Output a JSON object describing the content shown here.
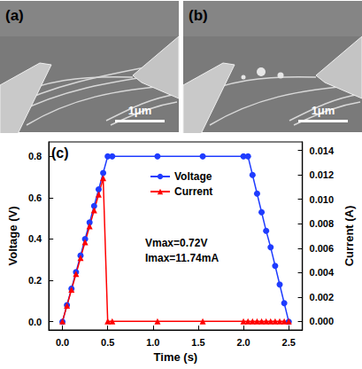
{
  "panels": [
    {
      "label": "(a)",
      "scale_bar": "1μm"
    },
    {
      "label": "(b)",
      "scale_bar": "1μm"
    }
  ],
  "chart_data": {
    "type": "line",
    "panel_label": "(c)",
    "x_label": "Time (s)",
    "y_label": "Voltage (V)",
    "y2_label": "Current (A)",
    "annotations": [
      "Vmax=0.72V",
      "Imax=11.74mA"
    ],
    "x": [
      0,
      0.05,
      0.1,
      0.15,
      0.2,
      0.25,
      0.3,
      0.35,
      0.4,
      0.45,
      0.5,
      0.55,
      1.05,
      1.55,
      2.0,
      2.05,
      2.1,
      2.15,
      2.2,
      2.25,
      2.3,
      2.35,
      2.4,
      2.45,
      2.5
    ],
    "series": [
      {
        "name": "Voltage",
        "color": "#1f3cff",
        "marker": "circle",
        "line_style": "solid",
        "axis": "y",
        "values": [
          0,
          0.08,
          0.16,
          0.24,
          0.32,
          0.4,
          0.48,
          0.56,
          0.64,
          0.72,
          0.8,
          0.8,
          0.8,
          0.8,
          0.8,
          0.8,
          0.71,
          0.62,
          0.53,
          0.44,
          0.36,
          0.27,
          0.18,
          0.09,
          0
        ]
      },
      {
        "name": "Current",
        "color": "#ff0000",
        "marker": "triangle",
        "line_style": "solid",
        "axis": "y2",
        "values": [
          0,
          0.0013,
          0.0026,
          0.0039,
          0.0052,
          0.0065,
          0.0078,
          0.0091,
          0.0104,
          0.01174,
          0,
          0,
          0,
          0,
          0,
          0,
          0,
          0,
          0,
          0,
          0,
          0,
          0,
          0,
          0
        ]
      }
    ],
    "xlim": [
      -0.15,
      2.65
    ],
    "xticks": [
      {
        "value": 0,
        "label": "0.0"
      },
      0.5,
      {
        "value": 1,
        "label": "1.0"
      },
      1.5,
      {
        "value": 2,
        "label": "2.0"
      },
      2.5
    ],
    "ylim": [
      -0.04,
      0.87
    ],
    "yticks": [
      {
        "value": 0,
        "label": "0.0"
      },
      0.2,
      0.4,
      0.6,
      0.8
    ],
    "y2lim": [
      -0.0007,
      0.0147
    ],
    "y2ticks": [
      {
        "value": 0,
        "label": "0.000"
      },
      0.002,
      0.004,
      0.006,
      0.008,
      {
        "value": 0.01,
        "label": "0.010"
      },
      0.012,
      0.014
    ],
    "grid": false,
    "legend": "top"
  }
}
